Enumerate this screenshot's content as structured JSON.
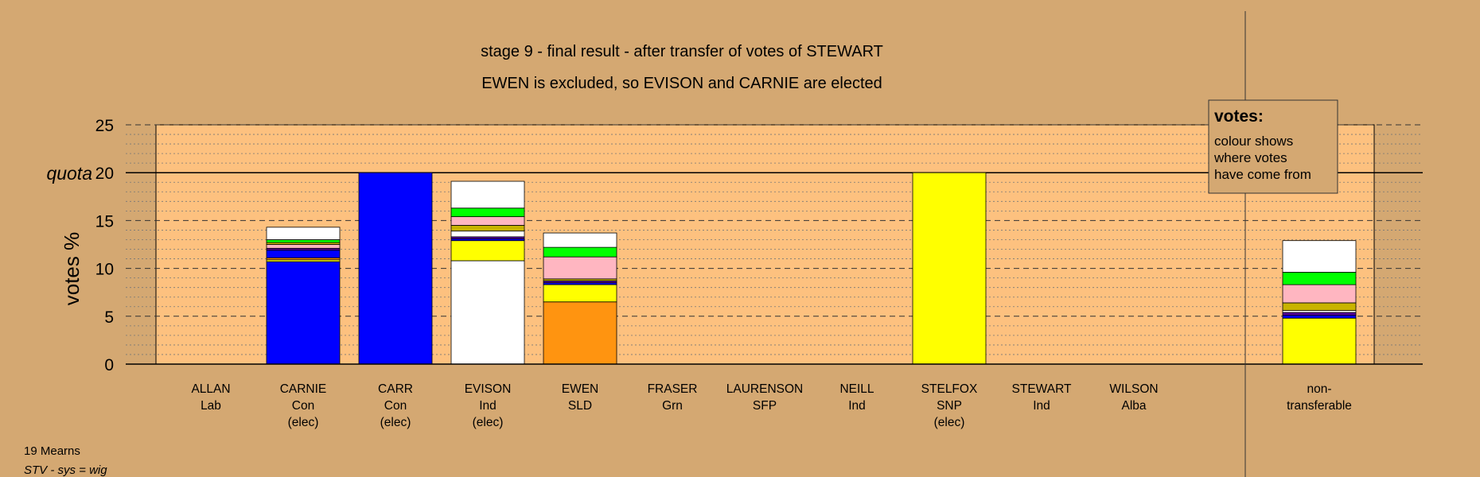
{
  "chart_data": {
    "type": "bar",
    "stacked": true,
    "title": "stage 9 - final result - after transfer of votes of STEWART",
    "subtitle": "EWEN is excluded, so EVISON and CARNIE are elected",
    "ylabel": "votes %",
    "ylim": [
      0,
      25
    ],
    "yticks": [
      0,
      5,
      10,
      15,
      20,
      25
    ],
    "quota": 20,
    "quota_label": "quota",
    "grid": true,
    "legend": {
      "title": "votes:",
      "lines": [
        "colour shows",
        "where votes",
        "have come from"
      ],
      "placement": "top-right"
    },
    "categories": [
      {
        "lines": [
          "ALLAN",
          "Lab"
        ],
        "segments": []
      },
      {
        "lines": [
          "CARNIE",
          "Con",
          "(elec)"
        ],
        "segments": [
          {
            "color": "#0000ff",
            "value": 10.7
          },
          {
            "color": "#ffff00",
            "value": 0.2
          },
          {
            "color": "#ff9410",
            "value": 0.2
          },
          {
            "color": "#0000ff",
            "value": 0.8
          },
          {
            "color": "#5a00a0",
            "value": 0.2
          },
          {
            "color": "#ffb6c1",
            "value": 0.4
          },
          {
            "color": "#c8b400",
            "value": 0.2
          },
          {
            "color": "#00ff00",
            "value": 0.3
          },
          {
            "color": "#ffffff",
            "value": 1.3
          }
        ]
      },
      {
        "lines": [
          "CARR",
          "Con",
          "(elec)"
        ],
        "segments": [
          {
            "color": "#0000ff",
            "value": 20.0
          }
        ]
      },
      {
        "lines": [
          "EVISON",
          "Ind",
          "(elec)"
        ],
        "segments": [
          {
            "color": "#ffffff",
            "value": 10.8
          },
          {
            "color": "#ffff00",
            "value": 2.1
          },
          {
            "color": "#0000ff",
            "value": 0.2
          },
          {
            "color": "#5a00a0",
            "value": 0.2
          },
          {
            "color": "#ffffff",
            "value": 0.6
          },
          {
            "color": "#c8b400",
            "value": 0.6
          },
          {
            "color": "#ffb6c1",
            "value": 0.9
          },
          {
            "color": "#00ff00",
            "value": 0.9
          },
          {
            "color": "#ffffff",
            "value": 2.8
          }
        ]
      },
      {
        "lines": [
          "EWEN",
          "SLD"
        ],
        "segments": [
          {
            "color": "#ff9410",
            "value": 6.5
          },
          {
            "color": "#ffff00",
            "value": 1.8
          },
          {
            "color": "#0000ff",
            "value": 0.2
          },
          {
            "color": "#5a00a0",
            "value": 0.2
          },
          {
            "color": "#c8b400",
            "value": 0.2
          },
          {
            "color": "#ffb6c1",
            "value": 2.3
          },
          {
            "color": "#00ff00",
            "value": 1.0
          },
          {
            "color": "#ffffff",
            "value": 1.5
          }
        ]
      },
      {
        "lines": [
          "FRASER",
          "Grn"
        ],
        "segments": []
      },
      {
        "lines": [
          "LAURENSON",
          "SFP"
        ],
        "segments": []
      },
      {
        "lines": [
          "NEILL",
          "Ind"
        ],
        "segments": []
      },
      {
        "lines": [
          "STELFOX",
          "SNP",
          "(elec)"
        ],
        "segments": [
          {
            "color": "#ffff00",
            "value": 20.0
          }
        ]
      },
      {
        "lines": [
          "STEWART",
          "Ind"
        ],
        "segments": []
      },
      {
        "lines": [
          "WILSON",
          "Alba"
        ],
        "segments": []
      },
      {
        "lines": [
          "non-",
          "transferable"
        ],
        "segments": [
          {
            "color": "#ffff00",
            "value": 4.8
          },
          {
            "color": "#0000ff",
            "value": 0.3
          },
          {
            "color": "#5a00a0",
            "value": 0.3
          },
          {
            "color": "#ffffff",
            "value": 0.2
          },
          {
            "color": "#c8b400",
            "value": 0.8
          },
          {
            "color": "#ffb6c1",
            "value": 1.9
          },
          {
            "color": "#00ff00",
            "value": 1.3
          },
          {
            "color": "#ffffff",
            "value": 3.3
          }
        ]
      }
    ]
  },
  "footer": {
    "ward": "19 Mearns",
    "system": "STV - sys = wig"
  },
  "colors": {
    "background": "#d4a872",
    "plot_area": "#fdc17f",
    "legend_box": "#d4a872"
  }
}
